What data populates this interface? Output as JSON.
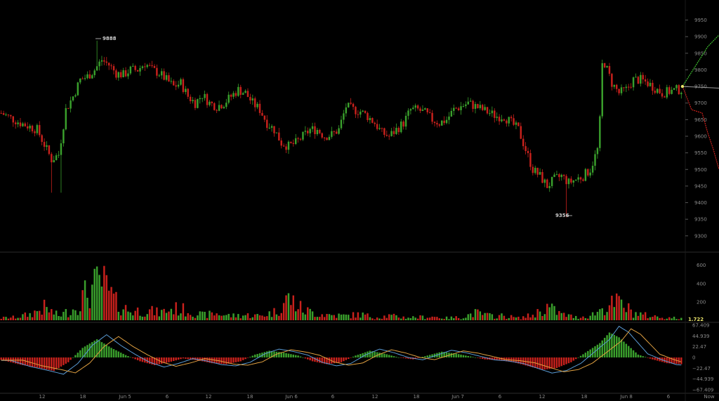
{
  "chart_data": {
    "type": "candlestick",
    "colors": {
      "background": "#000000",
      "up": "#3aa02c",
      "down": "#c8211c",
      "macd_line": "#5a9bd5",
      "signal_line": "#e0a040",
      "projection_up": "#3fbf2f",
      "projection_down": "#c8211c",
      "last_price_line": "#9a9a9a",
      "volume_marker": "#e8e26a"
    },
    "price_axis": {
      "ticks": [
        "9950",
        "9900",
        "9850",
        "9800",
        "9750",
        "9700",
        "9650",
        "9600",
        "9550",
        "9500",
        "9450",
        "9400",
        "9350",
        "9300"
      ],
      "range": [
        9270,
        9985
      ]
    },
    "volume_axis": {
      "ticks": [
        "600",
        "400",
        "200"
      ],
      "range": [
        0,
        720
      ],
      "current_label": "1.722"
    },
    "macd_axis": {
      "ticks": [
        "67.409",
        "44.939",
        "22.47",
        "0",
        "−22.47",
        "−44.939",
        "−67.409"
      ],
      "range": [
        -67.409,
        67.409
      ]
    },
    "time_axis": {
      "labels": [
        "12",
        "18",
        "Jun 5",
        "6",
        "12",
        "18",
        "Jun 6",
        "6",
        "12",
        "18",
        "Jun 7",
        "6",
        "12",
        "18",
        "Jun 8",
        "6",
        "Now"
      ]
    },
    "annotations": {
      "high_label": "9888",
      "low_label": "9356"
    },
    "price_path": [
      [
        0,
        9670
      ],
      [
        8,
        9640
      ],
      [
        15,
        9620
      ],
      [
        18,
        9575
      ],
      [
        21,
        9530
      ],
      [
        24,
        9545
      ],
      [
        27,
        9680
      ],
      [
        30,
        9720
      ],
      [
        33,
        9770
      ],
      [
        36,
        9780
      ],
      [
        39,
        9800
      ],
      [
        42,
        9830
      ],
      [
        45,
        9815
      ],
      [
        48,
        9790
      ],
      [
        51,
        9785
      ],
      [
        54,
        9800
      ],
      [
        57,
        9800
      ],
      [
        60,
        9820
      ],
      [
        63,
        9800
      ],
      [
        66,
        9790
      ],
      [
        69,
        9770
      ],
      [
        72,
        9750
      ],
      [
        75,
        9760
      ],
      [
        78,
        9720
      ],
      [
        81,
        9700
      ],
      [
        84,
        9725
      ],
      [
        87,
        9700
      ],
      [
        90,
        9690
      ],
      [
        93,
        9700
      ],
      [
        96,
        9720
      ],
      [
        99,
        9740
      ],
      [
        102,
        9730
      ],
      [
        105,
        9700
      ],
      [
        108,
        9680
      ],
      [
        111,
        9640
      ],
      [
        114,
        9620
      ],
      [
        117,
        9580
      ],
      [
        120,
        9570
      ],
      [
        123,
        9580
      ],
      [
        126,
        9600
      ],
      [
        129,
        9620
      ],
      [
        132,
        9620
      ],
      [
        135,
        9600
      ],
      [
        138,
        9605
      ],
      [
        141,
        9620
      ],
      [
        144,
        9690
      ],
      [
        147,
        9680
      ],
      [
        150,
        9675
      ],
      [
        153,
        9660
      ],
      [
        156,
        9640
      ],
      [
        159,
        9610
      ],
      [
        162,
        9600
      ],
      [
        165,
        9620
      ],
      [
        168,
        9640
      ],
      [
        171,
        9680
      ],
      [
        174,
        9680
      ],
      [
        177,
        9670
      ],
      [
        180,
        9650
      ],
      [
        183,
        9640
      ],
      [
        186,
        9650
      ],
      [
        189,
        9680
      ],
      [
        192,
        9690
      ],
      [
        195,
        9700
      ],
      [
        198,
        9690
      ],
      [
        201,
        9680
      ],
      [
        204,
        9670
      ],
      [
        207,
        9660
      ],
      [
        210,
        9660
      ],
      [
        213,
        9640
      ],
      [
        216,
        9620
      ],
      [
        219,
        9560
      ],
      [
        222,
        9500
      ],
      [
        225,
        9480
      ],
      [
        228,
        9450
      ],
      [
        231,
        9470
      ],
      [
        234,
        9480
      ],
      [
        237,
        9460
      ],
      [
        240,
        9470
      ],
      [
        243,
        9480
      ],
      [
        246,
        9500
      ],
      [
        249,
        9560
      ],
      [
        252,
        9820
      ],
      [
        255,
        9760
      ],
      [
        258,
        9730
      ],
      [
        261,
        9740
      ],
      [
        264,
        9770
      ],
      [
        267,
        9770
      ],
      [
        270,
        9760
      ],
      [
        273,
        9745
      ],
      [
        276,
        9730
      ],
      [
        279,
        9735
      ],
      [
        282,
        9740
      ],
      [
        284,
        9740
      ]
    ],
    "volume_path": [
      [
        0,
        30
      ],
      [
        6,
        40
      ],
      [
        12,
        80
      ],
      [
        18,
        170
      ],
      [
        24,
        60
      ],
      [
        30,
        150
      ],
      [
        36,
        380
      ],
      [
        42,
        520
      ],
      [
        48,
        230
      ],
      [
        54,
        120
      ],
      [
        60,
        140
      ],
      [
        66,
        100
      ],
      [
        72,
        160
      ],
      [
        78,
        130
      ],
      [
        84,
        70
      ],
      [
        90,
        90
      ],
      [
        96,
        60
      ],
      [
        102,
        70
      ],
      [
        108,
        60
      ],
      [
        114,
        110
      ],
      [
        120,
        300
      ],
      [
        126,
        140
      ],
      [
        132,
        90
      ],
      [
        138,
        70
      ],
      [
        144,
        60
      ],
      [
        150,
        80
      ],
      [
        156,
        40
      ],
      [
        162,
        60
      ],
      [
        168,
        40
      ],
      [
        174,
        40
      ],
      [
        180,
        50
      ],
      [
        186,
        30
      ],
      [
        192,
        40
      ],
      [
        198,
        100
      ],
      [
        204,
        60
      ],
      [
        210,
        60
      ],
      [
        216,
        30
      ],
      [
        222,
        70
      ],
      [
        228,
        180
      ],
      [
        234,
        80
      ],
      [
        240,
        40
      ],
      [
        246,
        60
      ],
      [
        252,
        180
      ],
      [
        258,
        240
      ],
      [
        264,
        100
      ],
      [
        270,
        60
      ],
      [
        276,
        40
      ],
      [
        282,
        30
      ],
      [
        284,
        20
      ]
    ],
    "macd_path": [
      [
        0,
        -5
      ],
      [
        8,
        -15
      ],
      [
        16,
        -22
      ],
      [
        22,
        -28
      ],
      [
        28,
        -10
      ],
      [
        34,
        20
      ],
      [
        40,
        38
      ],
      [
        46,
        20
      ],
      [
        52,
        5
      ],
      [
        58,
        -8
      ],
      [
        64,
        -16
      ],
      [
        70,
        -10
      ],
      [
        76,
        -2
      ],
      [
        82,
        -6
      ],
      [
        88,
        -12
      ],
      [
        94,
        -14
      ],
      [
        100,
        -8
      ],
      [
        106,
        6
      ],
      [
        112,
        14
      ],
      [
        118,
        10
      ],
      [
        124,
        4
      ],
      [
        130,
        -8
      ],
      [
        136,
        -14
      ],
      [
        142,
        -10
      ],
      [
        148,
        4
      ],
      [
        154,
        14
      ],
      [
        160,
        8
      ],
      [
        166,
        0
      ],
      [
        172,
        -4
      ],
      [
        178,
        4
      ],
      [
        184,
        12
      ],
      [
        190,
        8
      ],
      [
        196,
        2
      ],
      [
        202,
        -4
      ],
      [
        208,
        -6
      ],
      [
        214,
        -10
      ],
      [
        220,
        -18
      ],
      [
        226,
        -26
      ],
      [
        232,
        -22
      ],
      [
        238,
        -10
      ],
      [
        244,
        10
      ],
      [
        250,
        30
      ],
      [
        254,
        52
      ],
      [
        258,
        42
      ],
      [
        262,
        24
      ],
      [
        266,
        6
      ],
      [
        272,
        -4
      ],
      [
        278,
        -12
      ],
      [
        284,
        -14
      ]
    ]
  }
}
